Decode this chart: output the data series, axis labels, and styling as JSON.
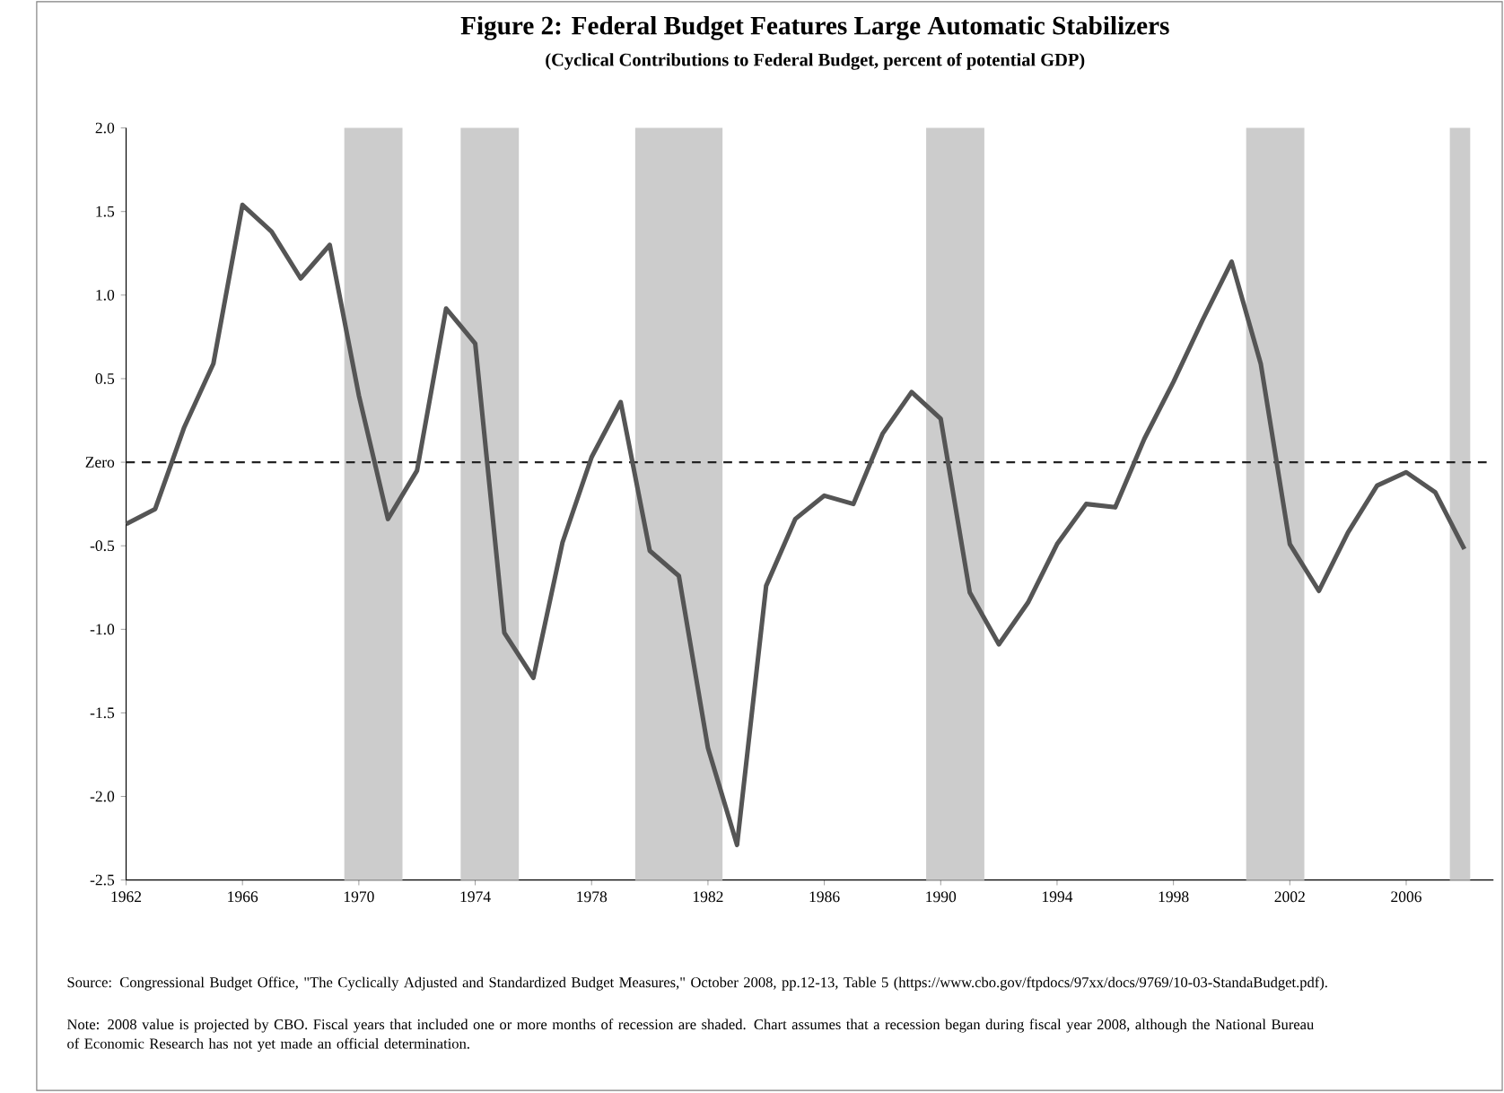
{
  "chart_data": {
    "type": "line",
    "title": "Figure 2: Federal Budget Features Large Automatic Stabilizers",
    "subtitle": "(Cyclical Contributions to Federal Budget, percent of potential GDP)",
    "x": [
      1962,
      1963,
      1964,
      1965,
      1966,
      1967,
      1968,
      1969,
      1970,
      1971,
      1972,
      1973,
      1974,
      1975,
      1976,
      1977,
      1978,
      1979,
      1980,
      1981,
      1982,
      1983,
      1984,
      1985,
      1986,
      1987,
      1988,
      1989,
      1990,
      1991,
      1992,
      1993,
      1994,
      1995,
      1996,
      1997,
      1998,
      1999,
      2000,
      2001,
      2002,
      2003,
      2004,
      2005,
      2006,
      2007,
      2008
    ],
    "series": [
      {
        "color": "#555555",
        "values": [
          -0.37,
          -0.28,
          0.21,
          0.59,
          1.54,
          1.38,
          1.1,
          1.3,
          0.4,
          -0.34,
          -0.05,
          0.92,
          0.71,
          -1.02,
          -1.29,
          -0.48,
          0.03,
          0.36,
          -0.53,
          -0.68,
          -1.71,
          -2.29,
          -0.74,
          -0.34,
          -0.2,
          -0.25,
          0.17,
          0.42,
          0.26,
          -0.78,
          -1.09,
          -0.84,
          -0.49,
          -0.25,
          -0.27,
          0.14,
          0.48,
          0.85,
          1.2,
          0.59,
          -0.49,
          -0.77,
          -0.42,
          -0.14,
          -0.06,
          -0.18,
          -0.52
        ]
      }
    ],
    "xlim": [
      1962,
      2009
    ],
    "ylim": [
      -2.5,
      2.0
    ],
    "xticks": [
      1962,
      1966,
      1970,
      1974,
      1978,
      1982,
      1986,
      1990,
      1994,
      1998,
      2002,
      2006
    ],
    "yticks": [
      {
        "value": -2.5,
        "label": "-2.5"
      },
      {
        "value": -2.0,
        "label": "-2.0"
      },
      {
        "value": -1.5,
        "label": "-1.5"
      },
      {
        "value": -1.0,
        "label": "-1.0"
      },
      {
        "value": -0.5,
        "label": "-0.5"
      },
      {
        "value": 0,
        "label": "Zero"
      },
      {
        "value": 0.5,
        "label": "0.5"
      },
      {
        "value": 1.0,
        "label": "1.0"
      },
      {
        "value": 1.5,
        "label": "1.5"
      },
      {
        "value": 2.0,
        "label": "2.0"
      }
    ],
    "ref_lines": [
      {
        "axis": "y",
        "value": 0,
        "color": "#222222",
        "line_style": "dashed"
      }
    ],
    "bands": [
      {
        "axis": "x",
        "from": 1969.5,
        "to": 1971.5,
        "color": "#cccccc"
      },
      {
        "axis": "x",
        "from": 1973.5,
        "to": 1975.5,
        "color": "#cccccc"
      },
      {
        "axis": "x",
        "from": 1979.5,
        "to": 1982.5,
        "color": "#cccccc"
      },
      {
        "axis": "x",
        "from": 1989.5,
        "to": 1991.5,
        "color": "#cccccc"
      },
      {
        "axis": "x",
        "from": 2000.5,
        "to": 2002.5,
        "color": "#cccccc"
      },
      {
        "axis": "x",
        "from": 2007.5,
        "to": 2008.2,
        "color": "#cccccc"
      }
    ],
    "annotations": [
      "Source: Congressional Budget Office, \"The Cyclically Adjusted and Standardized Budget Measures,\" October 2008, pp.12-13, Table 5 (https://www.cbo.gov/ftpdocs/97xx/docs/9769/10-03-StandaBudget.pdf).",
      "Note: 2008 value is projected by CBO.  Fiscal years that included one or more months of recession are shaded.   Chart assumes that a recession began during fiscal year 2008, although the National Bureau of Economic Research has not yet made an official determination."
    ],
    "marker": "none",
    "line_style": "solid"
  }
}
